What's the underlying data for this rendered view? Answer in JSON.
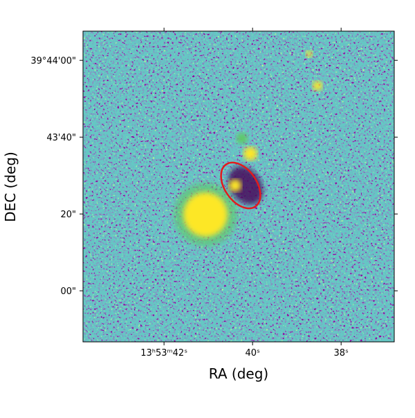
{
  "chart_data": {
    "type": "image",
    "xlabel": "RA (deg)",
    "ylabel": "DEC (deg)",
    "xlim": [
      43.83,
      36.8
    ],
    "ylim": [
      -13.3,
      67.6
    ],
    "xticks": [
      {
        "value": 42,
        "label": "13ʰ53ᵐ42ˢ"
      },
      {
        "value": 40,
        "label": "40ˢ"
      },
      {
        "value": 38,
        "label": "38ˢ"
      }
    ],
    "yticks": [
      {
        "value": 60,
        "label": "39°44'00\""
      },
      {
        "value": 40,
        "label": "43'40\""
      },
      {
        "value": 20,
        "label": "20\""
      },
      {
        "value": 0,
        "label": "00\""
      }
    ]
  }
}
